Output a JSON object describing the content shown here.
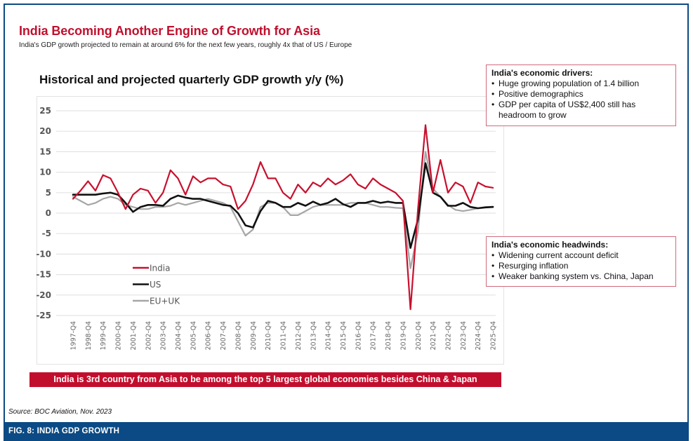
{
  "header": {
    "title": "India Becoming Another Engine of Growth for Asia",
    "subtitle": "India's GDP growth projected to remain at around 6% for the next few years, roughly 4x that of US / Europe"
  },
  "drivers": {
    "heading": "India's economic drivers:",
    "items": [
      "Huge growing population of 1.4 billion",
      "Positive demographics",
      "GDP per capita of US$2,400 still has headroom to grow"
    ]
  },
  "headwinds": {
    "heading": "India's economic headwinds:",
    "items": [
      "Widening current account deficit",
      "Resurging inflation",
      "Weaker banking system vs. China, Japan"
    ]
  },
  "banner": "India is 3rd country from Asia to be among the top 5 largest global economies besides China & Japan",
  "source": "Source: BOC Aviation, Nov. 2023",
  "figure_label": "FIG. 8: INDIA GDP GROWTH",
  "colors": {
    "india": "#c8102e",
    "us": "#111111",
    "eu_uk": "#a6a6a6",
    "accent": "#c20e2d",
    "footer": "#0b4a84"
  },
  "chart_data": {
    "type": "line",
    "title": "Historical and projected quarterly GDP growth y/y (%)",
    "xlabel": "",
    "ylabel": "",
    "ylim": [
      -25,
      25
    ],
    "yticks": [
      25,
      20,
      15,
      10,
      5,
      0,
      -5,
      -10,
      -15,
      -20,
      -25
    ],
    "grid": true,
    "legend_position": "lower-left",
    "x_tick_labels": [
      "1997-Q4",
      "1998-Q4",
      "1999-Q4",
      "2000-Q4",
      "2001-Q4",
      "2002-Q4",
      "2003-Q4",
      "2004-Q4",
      "2005-Q4",
      "2006-Q4",
      "2007-Q4",
      "2008-Q4",
      "2009-Q4",
      "2010-Q4",
      "2011-Q4",
      "2012-Q4",
      "2013-Q4",
      "2014-Q4",
      "2015-Q4",
      "2016-Q4",
      "2017-Q4",
      "2018-Q4",
      "2019-Q4",
      "2020-Q4",
      "2021-Q4",
      "2022-Q4",
      "2023-Q4",
      "2024-Q4",
      "2025-Q4"
    ],
    "x_start": "1997-Q4",
    "x_step": "2 quarters",
    "x": [
      1997.75,
      1998.25,
      1998.75,
      1999.25,
      1999.75,
      2000.25,
      2000.75,
      2001.25,
      2001.75,
      2002.25,
      2002.75,
      2003.25,
      2003.75,
      2004.25,
      2004.75,
      2005.25,
      2005.75,
      2006.25,
      2006.75,
      2007.25,
      2007.75,
      2008.25,
      2008.75,
      2009.25,
      2009.75,
      2010.25,
      2010.75,
      2011.25,
      2011.75,
      2012.25,
      2012.75,
      2013.25,
      2013.75,
      2014.25,
      2014.75,
      2015.25,
      2015.75,
      2016.25,
      2016.75,
      2017.25,
      2017.75,
      2018.25,
      2018.75,
      2019.25,
      2019.75,
      2020.25,
      2020.75,
      2021.25,
      2021.75,
      2022.25,
      2022.75,
      2023.25,
      2023.75,
      2024.25,
      2024.75,
      2025.25,
      2025.75
    ],
    "series": [
      {
        "name": "India",
        "values": [
          3.5,
          5.5,
          7.8,
          5.5,
          9.3,
          8.5,
          5.0,
          1.0,
          4.5,
          6.0,
          5.5,
          2.5,
          5.0,
          10.5,
          8.5,
          4.5,
          9.0,
          7.5,
          8.5,
          8.5,
          7.0,
          6.5,
          1.0,
          3.0,
          7.0,
          12.5,
          8.5,
          8.5,
          5.0,
          3.5,
          7.0,
          5.0,
          7.5,
          6.5,
          8.5,
          7.0,
          8.0,
          9.5,
          7.0,
          6.0,
          8.5,
          7.0,
          6.0,
          5.0,
          3.0,
          -23.5,
          1.0,
          21.5,
          5.0,
          13.0,
          5.0,
          7.5,
          6.5,
          2.5,
          7.5,
          6.5,
          6.2
        ]
      },
      {
        "name": "US",
        "values": [
          4.5,
          4.5,
          4.5,
          4.5,
          4.8,
          5.0,
          4.5,
          2.5,
          0.3,
          1.5,
          2.0,
          2.0,
          1.8,
          3.5,
          4.3,
          3.8,
          3.5,
          3.5,
          3.0,
          2.5,
          2.0,
          1.8,
          0.0,
          -3.0,
          -3.5,
          0.5,
          3.0,
          2.5,
          1.5,
          1.5,
          2.5,
          1.8,
          2.8,
          2.0,
          2.5,
          3.5,
          2.2,
          1.5,
          2.5,
          2.5,
          3.0,
          2.5,
          2.8,
          2.5,
          2.5,
          -8.5,
          -1.5,
          12.2,
          5.0,
          4.0,
          1.8,
          1.8,
          2.5,
          1.5,
          1.2,
          1.4,
          1.5
        ]
      },
      {
        "name": "EU+UK",
        "values": [
          4.0,
          3.0,
          2.0,
          2.5,
          3.5,
          4.0,
          3.5,
          2.0,
          1.5,
          1.0,
          1.0,
          1.5,
          1.5,
          1.8,
          2.5,
          2.0,
          2.5,
          3.0,
          3.5,
          3.0,
          2.5,
          1.5,
          -2.0,
          -5.5,
          -4.0,
          1.5,
          2.5,
          2.5,
          1.5,
          -0.5,
          -0.5,
          0.5,
          1.5,
          2.0,
          2.0,
          2.0,
          2.0,
          2.5,
          2.5,
          2.5,
          2.0,
          1.5,
          1.5,
          1.3,
          1.2,
          -13.5,
          -4.5,
          15.0,
          6.0,
          4.0,
          2.0,
          0.8,
          0.5,
          0.8,
          1.2,
          1.5,
          1.6
        ]
      }
    ]
  }
}
